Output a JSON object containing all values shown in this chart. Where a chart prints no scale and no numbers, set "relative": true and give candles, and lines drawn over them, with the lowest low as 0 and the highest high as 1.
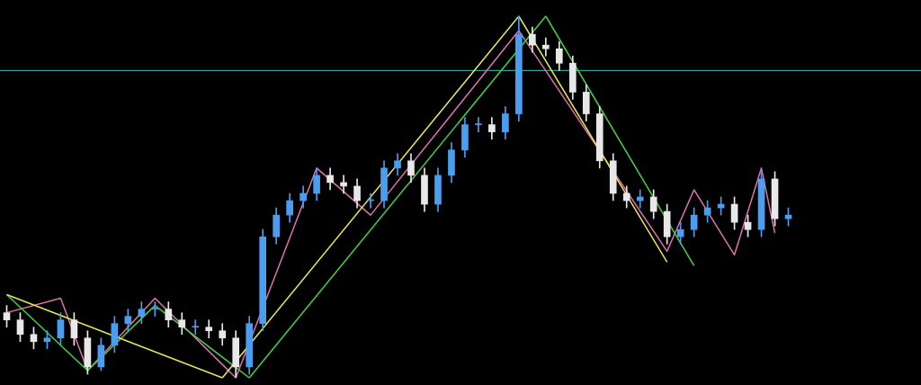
{
  "chart_data": {
    "type": "candlestick",
    "relative": true,
    "legend": false,
    "categories": [
      null,
      null,
      null,
      null,
      null,
      null,
      null,
      null,
      null,
      null,
      null,
      null,
      null,
      null,
      null,
      null,
      null,
      null,
      null,
      null,
      null,
      null,
      null,
      null,
      null,
      null,
      null,
      null,
      null,
      null,
      null,
      null,
      null,
      null,
      null,
      null,
      null,
      null,
      null,
      null,
      null,
      null,
      null,
      null,
      null,
      null,
      null,
      null,
      null,
      null,
      null,
      null,
      null,
      null,
      null,
      null,
      null,
      null,
      null
    ],
    "ohlc": [
      [
        0.18,
        0.2,
        0.14,
        0.16
      ],
      [
        0.16,
        0.18,
        0.1,
        0.12
      ],
      [
        0.12,
        0.14,
        0.08,
        0.1
      ],
      [
        0.1,
        0.13,
        0.08,
        0.11
      ],
      [
        0.11,
        0.18,
        0.09,
        0.16
      ],
      [
        0.16,
        0.18,
        0.09,
        0.11
      ],
      [
        0.11,
        0.13,
        0.01,
        0.03
      ],
      [
        0.03,
        0.11,
        0.02,
        0.09
      ],
      [
        0.09,
        0.17,
        0.07,
        0.15
      ],
      [
        0.15,
        0.19,
        0.13,
        0.17
      ],
      [
        0.17,
        0.21,
        0.15,
        0.19
      ],
      [
        0.19,
        0.21,
        0.17,
        0.19
      ],
      [
        0.19,
        0.21,
        0.14,
        0.16
      ],
      [
        0.16,
        0.18,
        0.12,
        0.14
      ],
      [
        0.14,
        0.16,
        0.12,
        0.14
      ],
      [
        0.14,
        0.16,
        0.11,
        0.13
      ],
      [
        0.13,
        0.15,
        0.09,
        0.11
      ],
      [
        0.11,
        0.13,
        0.0,
        0.03
      ],
      [
        0.03,
        0.17,
        0.01,
        0.15
      ],
      [
        0.15,
        0.41,
        0.13,
        0.39
      ],
      [
        0.39,
        0.47,
        0.37,
        0.45
      ],
      [
        0.45,
        0.51,
        0.43,
        0.49
      ],
      [
        0.49,
        0.53,
        0.47,
        0.51
      ],
      [
        0.51,
        0.58,
        0.49,
        0.56
      ],
      [
        0.56,
        0.58,
        0.52,
        0.54
      ],
      [
        0.54,
        0.56,
        0.51,
        0.53
      ],
      [
        0.53,
        0.55,
        0.47,
        0.49
      ],
      [
        0.49,
        0.51,
        0.47,
        0.49
      ],
      [
        0.49,
        0.6,
        0.47,
        0.58
      ],
      [
        0.58,
        0.62,
        0.56,
        0.6
      ],
      [
        0.6,
        0.62,
        0.54,
        0.56
      ],
      [
        0.56,
        0.58,
        0.46,
        0.48
      ],
      [
        0.48,
        0.58,
        0.46,
        0.56
      ],
      [
        0.56,
        0.65,
        0.54,
        0.63
      ],
      [
        0.63,
        0.72,
        0.61,
        0.7
      ],
      [
        0.7,
        0.72,
        0.68,
        0.7
      ],
      [
        0.7,
        0.72,
        0.66,
        0.68
      ],
      [
        0.68,
        0.75,
        0.66,
        0.73
      ],
      [
        0.73,
        1.0,
        0.71,
        0.95
      ],
      [
        0.95,
        0.97,
        0.9,
        0.92
      ],
      [
        0.92,
        0.94,
        0.89,
        0.91
      ],
      [
        0.91,
        0.93,
        0.85,
        0.87
      ],
      [
        0.87,
        0.89,
        0.77,
        0.79
      ],
      [
        0.79,
        0.81,
        0.71,
        0.73
      ],
      [
        0.73,
        0.75,
        0.58,
        0.6
      ],
      [
        0.6,
        0.62,
        0.49,
        0.51
      ],
      [
        0.51,
        0.53,
        0.47,
        0.49
      ],
      [
        0.49,
        0.52,
        0.47,
        0.5
      ],
      [
        0.5,
        0.52,
        0.44,
        0.46
      ],
      [
        0.46,
        0.48,
        0.37,
        0.39
      ],
      [
        0.39,
        0.43,
        0.37,
        0.41
      ],
      [
        0.41,
        0.47,
        0.39,
        0.45
      ],
      [
        0.45,
        0.49,
        0.43,
        0.47
      ],
      [
        0.47,
        0.5,
        0.45,
        0.48
      ],
      [
        0.48,
        0.5,
        0.41,
        0.43
      ],
      [
        0.43,
        0.45,
        0.39,
        0.41
      ],
      [
        0.41,
        0.57,
        0.39,
        0.55
      ],
      [
        0.55,
        0.57,
        0.42,
        0.44
      ],
      [
        0.44,
        0.47,
        0.42,
        0.45
      ]
    ],
    "series": [
      {
        "type": "line",
        "color": "#e6e64c",
        "values": [
          0.23,
          null,
          null,
          null,
          null,
          null,
          null,
          null,
          null,
          null,
          null,
          null,
          null,
          null,
          null,
          null,
          0.0,
          null,
          null,
          null,
          null,
          null,
          null,
          null,
          null,
          null,
          null,
          null,
          null,
          null,
          null,
          null,
          null,
          null,
          null,
          null,
          null,
          null,
          1.0,
          null,
          null,
          null,
          null,
          null,
          null,
          null,
          null,
          null,
          null,
          0.32,
          null,
          null,
          null,
          null,
          null,
          null,
          null,
          null,
          null
        ]
      },
      {
        "type": "line",
        "color": "#3fd23f",
        "values": [
          0.23,
          null,
          null,
          null,
          null,
          null,
          0.02,
          null,
          null,
          null,
          null,
          0.2,
          null,
          null,
          null,
          null,
          null,
          null,
          0.0,
          null,
          null,
          null,
          null,
          null,
          null,
          null,
          null,
          null,
          null,
          null,
          null,
          null,
          null,
          null,
          null,
          null,
          null,
          null,
          null,
          null,
          1.0,
          null,
          null,
          null,
          null,
          null,
          null,
          null,
          null,
          null,
          null,
          0.31,
          null,
          null,
          null,
          null,
          null,
          null,
          null
        ]
      },
      {
        "type": "line",
        "color": "#e070b0",
        "values": [
          0.18,
          null,
          null,
          null,
          0.22,
          null,
          0.02,
          null,
          null,
          null,
          null,
          0.22,
          null,
          null,
          null,
          null,
          null,
          0.0,
          null,
          null,
          null,
          null,
          null,
          0.58,
          null,
          null,
          null,
          0.45,
          null,
          null,
          null,
          null,
          null,
          null,
          null,
          null,
          null,
          null,
          0.96,
          null,
          null,
          null,
          null,
          null,
          null,
          null,
          null,
          null,
          null,
          0.35,
          null,
          0.52,
          null,
          null,
          0.34,
          null,
          0.58,
          0.4,
          null
        ]
      }
    ],
    "ref_lines": [
      {
        "axis": "y",
        "value": 0.85,
        "color": "#40c0c8"
      }
    ]
  }
}
